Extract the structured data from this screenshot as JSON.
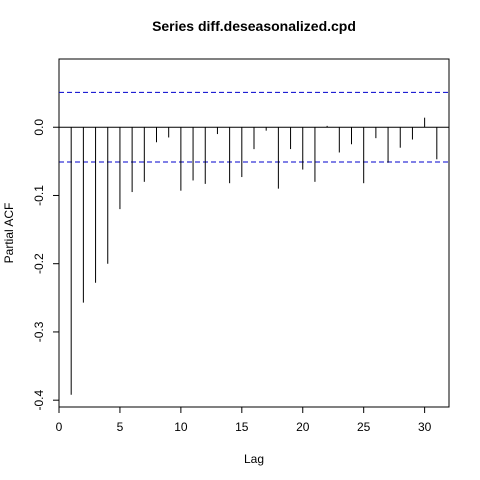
{
  "chart_data": {
    "type": "bar",
    "title": "Series  diff.deseasonalized.cpd",
    "xlabel": "Lag",
    "ylabel": "Partial ACF",
    "xlim": [
      0,
      32
    ],
    "ylim": [
      -0.41,
      0.1
    ],
    "x_ticks": [
      0,
      5,
      10,
      15,
      20,
      25,
      30
    ],
    "y_ticks": [
      -0.4,
      -0.3,
      -0.2,
      -0.1,
      0.0
    ],
    "x_tick_labels": [
      "0",
      "5",
      "10",
      "15",
      "20",
      "25",
      "30"
    ],
    "y_tick_labels": [
      "-0.4",
      "-0.3",
      "-0.2",
      "-0.1",
      "0.0"
    ],
    "lags": [
      1,
      2,
      3,
      4,
      5,
      6,
      7,
      8,
      9,
      10,
      11,
      12,
      13,
      14,
      15,
      16,
      17,
      18,
      19,
      20,
      21,
      22,
      23,
      24,
      25,
      26,
      27,
      28,
      29,
      30,
      31
    ],
    "values": [
      -0.392,
      -0.257,
      -0.228,
      -0.2,
      -0.12,
      -0.095,
      -0.08,
      -0.022,
      -0.015,
      -0.093,
      -0.078,
      -0.083,
      -0.01,
      -0.082,
      -0.073,
      -0.032,
      -0.005,
      -0.09,
      -0.032,
      -0.062,
      -0.08,
      0.002,
      -0.037,
      -0.025,
      -0.082,
      -0.016,
      -0.052,
      -0.03,
      -0.018,
      0.014,
      -0.047
    ],
    "confidence_bound": 0.051,
    "colors": {
      "spike": "#000000",
      "bound": "#0000CD",
      "axis": "#000000"
    }
  }
}
